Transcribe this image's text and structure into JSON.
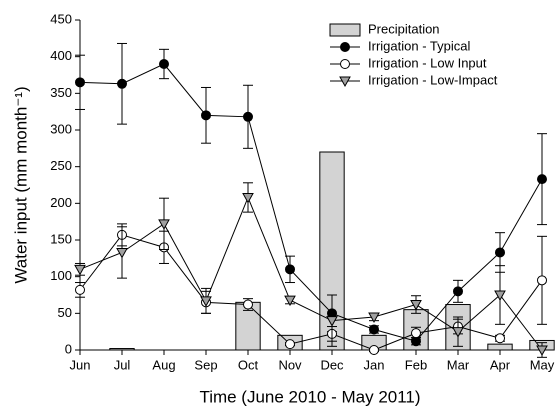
{
  "chart_data": {
    "type": "combo",
    "x_label": "Time (June 2010 - May 2011)",
    "y_label": "Water input (mm month⁻¹)",
    "categories": [
      "Jun",
      "Jul",
      "Aug",
      "Sep",
      "Oct",
      "Nov",
      "Dec",
      "Jan",
      "Feb",
      "Mar",
      "Apr",
      "May"
    ],
    "ylim": [
      0,
      450
    ],
    "yticks": [
      0,
      50,
      100,
      150,
      200,
      250,
      300,
      350,
      400,
      450
    ],
    "legend": "upper-right",
    "series": [
      {
        "name": "Precipitation",
        "type": "bar",
        "color": "#d3d3d3",
        "values": [
          0,
          2,
          0,
          0,
          65,
          20,
          270,
          20,
          55,
          62,
          8,
          13
        ]
      },
      {
        "name": "Irrigation - Typical",
        "type": "line",
        "marker": "circle",
        "color": "#000000",
        "marker_fill": "#000000",
        "values": [
          365,
          363,
          390,
          320,
          318,
          110,
          50,
          28,
          12,
          80,
          133,
          233
        ],
        "errors": [
          37,
          55,
          20,
          38,
          43,
          18,
          25,
          5,
          5,
          15,
          27,
          62
        ]
      },
      {
        "name": "Irrigation - Low Input",
        "type": "line",
        "marker": "circle",
        "color": "#000000",
        "marker_fill": "#ffffff",
        "values": [
          82,
          157,
          140,
          65,
          62,
          8,
          22,
          0,
          23,
          32,
          16,
          95
        ],
        "errors": [
          10,
          15,
          22,
          15,
          8,
          2,
          10,
          2,
          8,
          10,
          4,
          60
        ]
      },
      {
        "name": "Irrigation - Low-Impact",
        "type": "line",
        "marker": "triangle-down",
        "color": "#000000",
        "marker_fill": "#a0a0a0",
        "values": [
          110,
          133,
          172,
          67,
          208,
          68,
          40,
          45,
          62,
          25,
          75,
          0
        ],
        "errors": [
          8,
          35,
          35,
          17,
          20,
          5,
          35,
          5,
          12,
          20,
          40,
          10
        ]
      }
    ]
  }
}
